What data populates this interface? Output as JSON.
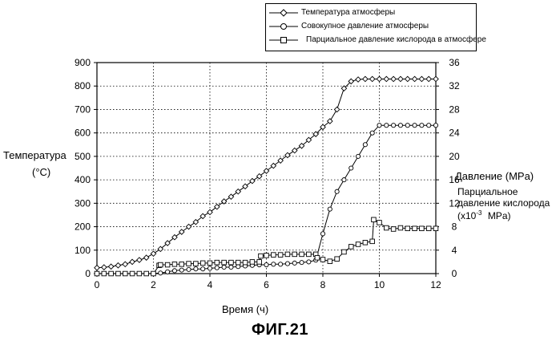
{
  "chart_data": {
    "type": "line",
    "caption": "ФИГ.21",
    "xlabel": "Время (ч)",
    "xlim": [
      0,
      12
    ],
    "x_ticks": [
      0,
      2,
      4,
      6,
      8,
      10,
      12
    ],
    "y_left": {
      "label_line1": "Температура",
      "label_line2": "(°C)",
      "ylim": [
        0,
        900
      ],
      "ticks": [
        0,
        100,
        200,
        300,
        400,
        500,
        600,
        700,
        800,
        900
      ]
    },
    "y_right": {
      "label_pressure": "Давление (MPa)",
      "label_partial_1": "Парциальное",
      "label_partial_2": "давление кислорода",
      "label_partial_3_pre": "(x10",
      "label_partial_3_sup": "-3",
      "label_partial_3_post": "MPa)",
      "ylim": [
        0,
        36
      ],
      "ticks": [
        0,
        4,
        8,
        12,
        16,
        20,
        24,
        28,
        32,
        36
      ]
    },
    "grid": true,
    "legend_position": "top-right",
    "series": [
      {
        "name": "Температура атмосферы",
        "axis": "left",
        "marker": "diamond",
        "x": [
          0,
          0.25,
          0.5,
          0.75,
          1,
          1.25,
          1.5,
          1.75,
          2,
          2.25,
          2.5,
          2.75,
          3,
          3.25,
          3.5,
          3.75,
          4,
          4.25,
          4.5,
          4.75,
          5,
          5.25,
          5.5,
          5.75,
          6,
          6.25,
          6.5,
          6.75,
          7,
          7.25,
          7.5,
          7.75,
          8,
          8.25,
          8.5,
          8.75,
          9,
          9.25,
          9.5,
          9.75,
          10,
          10.25,
          10.5,
          10.75,
          11,
          11.25,
          11.5,
          11.75,
          12
        ],
        "values": [
          25,
          27,
          30,
          35,
          40,
          50,
          58,
          68,
          85,
          105,
          130,
          155,
          178,
          200,
          220,
          245,
          262,
          285,
          308,
          328,
          350,
          372,
          395,
          415,
          438,
          460,
          482,
          505,
          525,
          545,
          570,
          595,
          625,
          650,
          700,
          790,
          820,
          828,
          830,
          830,
          830,
          830,
          830,
          830,
          830,
          830,
          830,
          830,
          830
        ]
      },
      {
        "name": "Совокупное давление атмосферы",
        "axis": "right",
        "marker": "circle",
        "x": [
          0,
          0.25,
          0.5,
          0.75,
          1,
          1.25,
          1.5,
          1.75,
          2,
          2.25,
          2.5,
          2.75,
          3,
          3.25,
          3.5,
          3.75,
          4,
          4.25,
          4.5,
          4.75,
          5,
          5.25,
          5.5,
          5.75,
          6,
          6.25,
          6.5,
          6.75,
          7,
          7.25,
          7.5,
          7.75,
          8,
          8.25,
          8.5,
          8.75,
          9,
          9.25,
          9.5,
          9.75,
          10,
          10.25,
          10.5,
          10.75,
          11,
          11.25,
          11.5,
          11.75,
          12
        ],
        "values": [
          0,
          0,
          0,
          0,
          0,
          0,
          0,
          0,
          0,
          0.1,
          0.3,
          0.5,
          0.6,
          0.7,
          0.8,
          0.8,
          0.9,
          1,
          1.1,
          1.1,
          1.2,
          1.3,
          1.4,
          1.5,
          1.5,
          1.6,
          1.6,
          1.7,
          1.8,
          1.9,
          2,
          2.3,
          6.8,
          11,
          14,
          16,
          18,
          20,
          22,
          24,
          25.3,
          25.3,
          25.3,
          25.3,
          25.3,
          25.3,
          25.3,
          25.3,
          25.3
        ]
      },
      {
        "name": "Парциальное давление кислорода в атмосфере",
        "axis": "right",
        "marker": "square",
        "x": [
          0,
          0.25,
          0.5,
          0.75,
          1,
          1.25,
          1.5,
          1.75,
          2,
          2.2,
          2.25,
          2.5,
          2.75,
          3,
          3.25,
          3.5,
          3.75,
          4,
          4.25,
          4.5,
          4.75,
          5,
          5.25,
          5.5,
          5.75,
          5.8,
          6,
          6.25,
          6.5,
          6.75,
          7,
          7.25,
          7.5,
          7.75,
          7.8,
          8,
          8.25,
          8.5,
          8.75,
          9,
          9.25,
          9.5,
          9.75,
          9.8,
          10,
          10.25,
          10.5,
          10.75,
          11,
          11.25,
          11.5,
          11.75,
          12
        ],
        "values": [
          0,
          0,
          0,
          0,
          0,
          0,
          0,
          0,
          0,
          1.4,
          1.5,
          1.5,
          1.6,
          1.6,
          1.7,
          1.7,
          1.8,
          1.8,
          1.9,
          1.9,
          1.9,
          1.9,
          1.9,
          2,
          2,
          3,
          3.1,
          3.2,
          3.2,
          3.3,
          3.3,
          3.3,
          3.3,
          3.3,
          2.7,
          2.4,
          2.1,
          2.5,
          3.7,
          4.6,
          5,
          5.3,
          5.5,
          9.2,
          8.7,
          7.8,
          7.6,
          7.8,
          7.7,
          7.7,
          7.7,
          7.7,
          7.7
        ]
      }
    ]
  }
}
